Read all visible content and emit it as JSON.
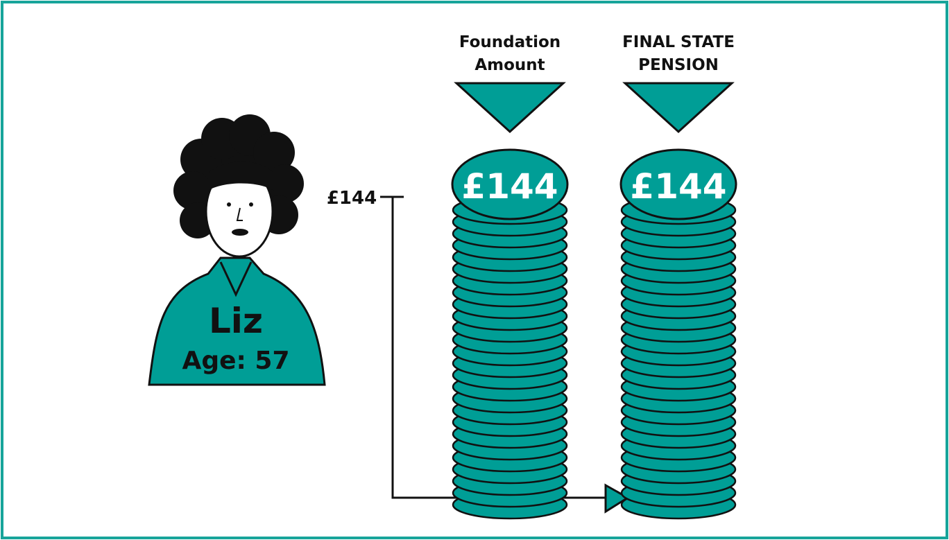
{
  "person": {
    "name": "Liz",
    "age_label": "Age: 57"
  },
  "axis": {
    "label": "£144"
  },
  "stacks": [
    {
      "title_lines": [
        "Foundation",
        "Amount"
      ],
      "coin_label": "£144"
    },
    {
      "title_lines": [
        "FINAL STATE",
        "PENSION"
      ],
      "coin_label": "£144"
    }
  ]
}
